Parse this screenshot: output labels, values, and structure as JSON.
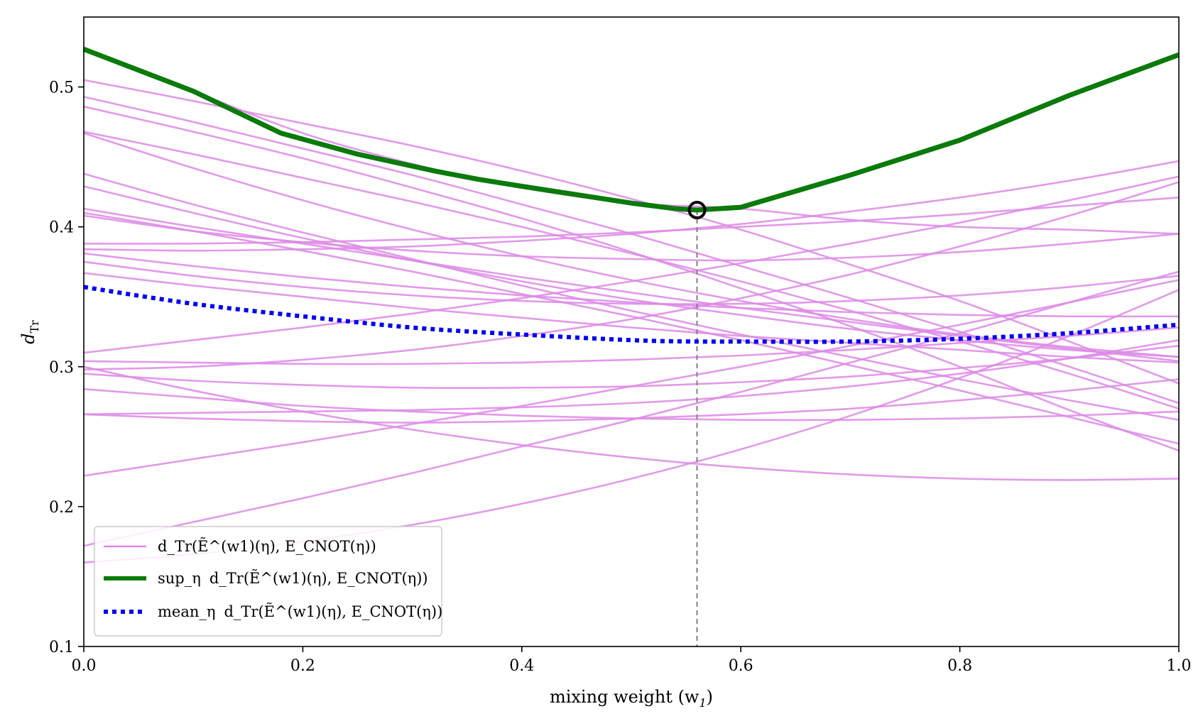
{
  "chart_data": {
    "type": "line",
    "xlabel": "mixing weight (w",
    "xlabel_sub": "1",
    "xlabel_close": ")",
    "ylabel": "d",
    "ylabel_sub": "Tr",
    "xlim": [
      0.0,
      1.0
    ],
    "ylim": [
      0.1,
      0.55
    ],
    "x_ticks": [
      "0.0",
      "0.2",
      "0.4",
      "0.6",
      "0.8",
      "1.0"
    ],
    "y_ticks": [
      "0.1",
      "0.2",
      "0.3",
      "0.4",
      "0.5"
    ],
    "x_tick_values": [
      0.0,
      0.2,
      0.4,
      0.6,
      0.8,
      1.0
    ],
    "y_tick_values": [
      0.1,
      0.2,
      0.3,
      0.4,
      0.5
    ],
    "grid": false,
    "legend_position": "lower-left",
    "colors": {
      "individual": "#dd88e6",
      "sup": "#0a7a0a",
      "mean": "#0000ee",
      "marker": "#000000",
      "vline": "#808080"
    },
    "legend": [
      {
        "key": "individual",
        "prefix": "",
        "text": "d_Tr(Ẽ^(w1)(η), E_CNOT(η))"
      },
      {
        "key": "sup",
        "prefix": "sup_η",
        "text": "d_Tr(Ẽ^(w1)(η), E_CNOT(η))"
      },
      {
        "key": "mean",
        "prefix": "mean_η",
        "text": "d_Tr(Ẽ^(w1)(η), E_CNOT(η))"
      }
    ],
    "x": [
      0.0,
      0.1,
      0.2,
      0.3,
      0.4,
      0.5,
      0.6,
      0.7,
      0.8,
      0.9,
      1.0
    ],
    "individual_series": [
      [
        0.528,
        0.497,
        0.467,
        0.445,
        0.428,
        0.417,
        0.413,
        0.405,
        0.4,
        0.398,
        0.395
      ],
      [
        0.505,
        0.49,
        0.474,
        0.458,
        0.44,
        0.42,
        0.398,
        0.373,
        0.347,
        0.318,
        0.288
      ],
      [
        0.493,
        0.475,
        0.456,
        0.437,
        0.416,
        0.395,
        0.372,
        0.349,
        0.325,
        0.3,
        0.274
      ],
      [
        0.486,
        0.468,
        0.449,
        0.428,
        0.406,
        0.382,
        0.356,
        0.329,
        0.3,
        0.269,
        0.24
      ],
      [
        0.468,
        0.452,
        0.435,
        0.418,
        0.4,
        0.381,
        0.361,
        0.34,
        0.318,
        0.295,
        0.27
      ],
      [
        0.467,
        0.442,
        0.419,
        0.398,
        0.379,
        0.362,
        0.347,
        0.334,
        0.323,
        0.314,
        0.307
      ],
      [
        0.438,
        0.416,
        0.396,
        0.377,
        0.358,
        0.34,
        0.323,
        0.307,
        0.291,
        0.276,
        0.262
      ],
      [
        0.429,
        0.41,
        0.392,
        0.376,
        0.361,
        0.348,
        0.337,
        0.327,
        0.319,
        0.312,
        0.307
      ],
      [
        0.413,
        0.4,
        0.388,
        0.376,
        0.364,
        0.353,
        0.342,
        0.332,
        0.322,
        0.313,
        0.304
      ],
      [
        0.41,
        0.397,
        0.383,
        0.368,
        0.352,
        0.336,
        0.319,
        0.301,
        0.283,
        0.264,
        0.245
      ],
      [
        0.408,
        0.397,
        0.389,
        0.383,
        0.379,
        0.377,
        0.376,
        0.378,
        0.382,
        0.388,
        0.395
      ],
      [
        0.388,
        0.388,
        0.389,
        0.391,
        0.393,
        0.396,
        0.4,
        0.404,
        0.409,
        0.415,
        0.421
      ],
      [
        0.384,
        0.383,
        0.384,
        0.386,
        0.39,
        0.395,
        0.402,
        0.411,
        0.421,
        0.433,
        0.447
      ],
      [
        0.381,
        0.372,
        0.364,
        0.357,
        0.351,
        0.346,
        0.342,
        0.339,
        0.337,
        0.336,
        0.336
      ],
      [
        0.375,
        0.365,
        0.357,
        0.351,
        0.347,
        0.345,
        0.345,
        0.347,
        0.351,
        0.357,
        0.365
      ],
      [
        0.367,
        0.358,
        0.35,
        0.342,
        0.335,
        0.328,
        0.322,
        0.317,
        0.312,
        0.307,
        0.303
      ],
      [
        0.31,
        0.319,
        0.328,
        0.338,
        0.349,
        0.361,
        0.374,
        0.388,
        0.403,
        0.419,
        0.436
      ],
      [
        0.304,
        0.303,
        0.302,
        0.302,
        0.303,
        0.305,
        0.308,
        0.312,
        0.317,
        0.322,
        0.328
      ],
      [
        0.298,
        0.3,
        0.305,
        0.312,
        0.322,
        0.334,
        0.349,
        0.366,
        0.386,
        0.408,
        0.432
      ],
      [
        0.295,
        0.29,
        0.287,
        0.285,
        0.285,
        0.286,
        0.289,
        0.293,
        0.299,
        0.306,
        0.315
      ],
      [
        0.284,
        0.278,
        0.272,
        0.268,
        0.265,
        0.263,
        0.262,
        0.262,
        0.263,
        0.265,
        0.268
      ],
      [
        0.266,
        0.267,
        0.268,
        0.269,
        0.271,
        0.274,
        0.279,
        0.286,
        0.295,
        0.306,
        0.319
      ],
      [
        0.3,
        0.283,
        0.268,
        0.255,
        0.244,
        0.235,
        0.228,
        0.223,
        0.22,
        0.219,
        0.22
      ],
      [
        0.222,
        0.234,
        0.246,
        0.259,
        0.272,
        0.286,
        0.3,
        0.315,
        0.33,
        0.346,
        0.362
      ],
      [
        0.172,
        0.189,
        0.206,
        0.224,
        0.243,
        0.262,
        0.282,
        0.303,
        0.324,
        0.346,
        0.368
      ],
      [
        0.16,
        0.166,
        0.175,
        0.187,
        0.202,
        0.22,
        0.241,
        0.265,
        0.292,
        0.322,
        0.355
      ],
      [
        0.266,
        0.263,
        0.261,
        0.26,
        0.261,
        0.263,
        0.266,
        0.27,
        0.276,
        0.283,
        0.291
      ]
    ],
    "series": [
      {
        "key": "sup",
        "x": [
          0.0,
          0.1,
          0.18,
          0.25,
          0.32,
          0.36,
          0.4,
          0.45,
          0.5,
          0.54,
          0.56,
          0.6,
          0.7,
          0.8,
          0.9,
          1.0
        ],
        "values": [
          0.527,
          0.497,
          0.467,
          0.452,
          0.44,
          0.434,
          0.429,
          0.423,
          0.417,
          0.413,
          0.412,
          0.414,
          0.437,
          0.462,
          0.494,
          0.523
        ]
      },
      {
        "key": "mean",
        "x": [
          0.0,
          0.1,
          0.2,
          0.3,
          0.4,
          0.5,
          0.56,
          0.6,
          0.7,
          0.8,
          0.9,
          1.0
        ],
        "values": [
          0.357,
          0.345,
          0.336,
          0.328,
          0.323,
          0.319,
          0.318,
          0.318,
          0.318,
          0.32,
          0.324,
          0.33
        ]
      }
    ],
    "optimum": {
      "x": 0.56,
      "y": 0.412
    }
  }
}
